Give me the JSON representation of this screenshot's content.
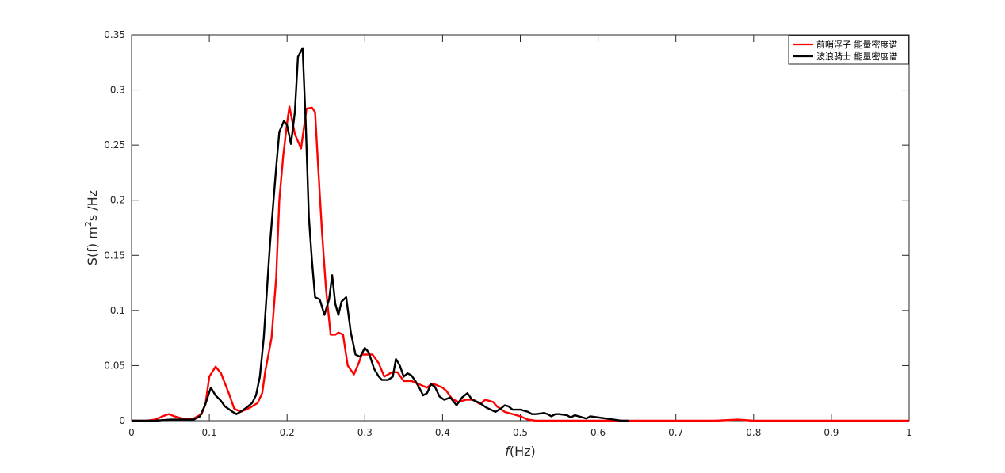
{
  "chart_data": {
    "type": "line",
    "title": "",
    "xlabel": "f(Hz)",
    "xlabel_italic_part": "f",
    "xlabel_rest": "(Hz)",
    "ylabel": "S(f) m²s /Hz",
    "ylabel_parts": {
      "prefix": "S(f) m",
      "sup": "2",
      "suffix": "s /Hz"
    },
    "xlim": [
      0,
      1
    ],
    "ylim": [
      0,
      0.35
    ],
    "xticks": [
      0,
      0.1,
      0.2,
      0.3,
      0.4,
      0.5,
      0.6,
      0.7,
      0.8,
      0.9,
      1
    ],
    "xtick_labels": [
      "0",
      "0.1",
      "0.2",
      "0.3",
      "0.4",
      "0.5",
      "0.6",
      "0.7",
      "0.8",
      "0.9",
      "1"
    ],
    "yticks": [
      0,
      0.05,
      0.1,
      0.15,
      0.2,
      0.25,
      0.3,
      0.35
    ],
    "ytick_labels": [
      "0",
      "0.05",
      "0.1",
      "0.15",
      "0.2",
      "0.25",
      "0.3",
      "0.35"
    ],
    "grid": false,
    "legend_position": "top-right",
    "series": [
      {
        "name": "前哨浮子 能量密度谱",
        "color": "#ff0000",
        "points": [
          [
            0.0,
            0.0
          ],
          [
            0.02,
            0.0
          ],
          [
            0.03,
            0.001
          ],
          [
            0.04,
            0.004
          ],
          [
            0.048,
            0.006
          ],
          [
            0.055,
            0.004
          ],
          [
            0.065,
            0.002
          ],
          [
            0.08,
            0.002
          ],
          [
            0.09,
            0.006
          ],
          [
            0.095,
            0.015
          ],
          [
            0.1,
            0.04
          ],
          [
            0.108,
            0.049
          ],
          [
            0.115,
            0.043
          ],
          [
            0.125,
            0.025
          ],
          [
            0.132,
            0.011
          ],
          [
            0.14,
            0.008
          ],
          [
            0.15,
            0.011
          ],
          [
            0.155,
            0.013
          ],
          [
            0.162,
            0.016
          ],
          [
            0.168,
            0.025
          ],
          [
            0.172,
            0.045
          ],
          [
            0.18,
            0.075
          ],
          [
            0.186,
            0.13
          ],
          [
            0.19,
            0.2
          ],
          [
            0.195,
            0.24
          ],
          [
            0.2,
            0.27
          ],
          [
            0.203,
            0.285
          ],
          [
            0.21,
            0.26
          ],
          [
            0.218,
            0.247
          ],
          [
            0.225,
            0.283
          ],
          [
            0.232,
            0.284
          ],
          [
            0.236,
            0.28
          ],
          [
            0.24,
            0.23
          ],
          [
            0.245,
            0.17
          ],
          [
            0.25,
            0.12
          ],
          [
            0.256,
            0.078
          ],
          [
            0.262,
            0.078
          ],
          [
            0.266,
            0.08
          ],
          [
            0.272,
            0.078
          ],
          [
            0.278,
            0.05
          ],
          [
            0.286,
            0.042
          ],
          [
            0.292,
            0.052
          ],
          [
            0.296,
            0.06
          ],
          [
            0.305,
            0.06
          ],
          [
            0.31,
            0.06
          ],
          [
            0.318,
            0.052
          ],
          [
            0.325,
            0.04
          ],
          [
            0.33,
            0.042
          ],
          [
            0.335,
            0.044
          ],
          [
            0.342,
            0.044
          ],
          [
            0.35,
            0.036
          ],
          [
            0.36,
            0.036
          ],
          [
            0.37,
            0.033
          ],
          [
            0.38,
            0.03
          ],
          [
            0.385,
            0.033
          ],
          [
            0.39,
            0.033
          ],
          [
            0.4,
            0.03
          ],
          [
            0.405,
            0.027
          ],
          [
            0.412,
            0.02
          ],
          [
            0.42,
            0.017
          ],
          [
            0.43,
            0.019
          ],
          [
            0.44,
            0.019
          ],
          [
            0.448,
            0.015
          ],
          [
            0.455,
            0.019
          ],
          [
            0.465,
            0.017
          ],
          [
            0.47,
            0.013
          ],
          [
            0.48,
            0.008
          ],
          [
            0.49,
            0.006
          ],
          [
            0.5,
            0.004
          ],
          [
            0.51,
            0.001
          ],
          [
            0.52,
            0.0
          ],
          [
            0.6,
            0.0
          ],
          [
            0.7,
            0.0
          ],
          [
            0.75,
            0.0
          ],
          [
            0.78,
            0.001
          ],
          [
            0.8,
            0.0
          ],
          [
            0.9,
            0.0
          ],
          [
            1.0,
            0.0
          ]
        ]
      },
      {
        "name": "波浪骑士 能量密度谱",
        "color": "#000000",
        "points": [
          [
            0.0,
            0.0
          ],
          [
            0.03,
            0.0
          ],
          [
            0.05,
            0.001
          ],
          [
            0.07,
            0.001
          ],
          [
            0.08,
            0.001
          ],
          [
            0.088,
            0.004
          ],
          [
            0.095,
            0.015
          ],
          [
            0.1,
            0.026
          ],
          [
            0.102,
            0.03
          ],
          [
            0.108,
            0.023
          ],
          [
            0.115,
            0.018
          ],
          [
            0.12,
            0.013
          ],
          [
            0.13,
            0.008
          ],
          [
            0.135,
            0.006
          ],
          [
            0.142,
            0.009
          ],
          [
            0.148,
            0.012
          ],
          [
            0.155,
            0.016
          ],
          [
            0.16,
            0.023
          ],
          [
            0.165,
            0.04
          ],
          [
            0.17,
            0.075
          ],
          [
            0.178,
            0.16
          ],
          [
            0.186,
            0.23
          ],
          [
            0.19,
            0.262
          ],
          [
            0.196,
            0.272
          ],
          [
            0.2,
            0.268
          ],
          [
            0.205,
            0.251
          ],
          [
            0.21,
            0.28
          ],
          [
            0.214,
            0.33
          ],
          [
            0.22,
            0.338
          ],
          [
            0.224,
            0.27
          ],
          [
            0.228,
            0.185
          ],
          [
            0.232,
            0.145
          ],
          [
            0.236,
            0.112
          ],
          [
            0.242,
            0.11
          ],
          [
            0.248,
            0.096
          ],
          [
            0.254,
            0.11
          ],
          [
            0.258,
            0.132
          ],
          [
            0.262,
            0.106
          ],
          [
            0.266,
            0.096
          ],
          [
            0.27,
            0.108
          ],
          [
            0.276,
            0.112
          ],
          [
            0.282,
            0.08
          ],
          [
            0.288,
            0.06
          ],
          [
            0.294,
            0.058
          ],
          [
            0.3,
            0.066
          ],
          [
            0.305,
            0.062
          ],
          [
            0.312,
            0.047
          ],
          [
            0.318,
            0.04
          ],
          [
            0.322,
            0.037
          ],
          [
            0.33,
            0.037
          ],
          [
            0.336,
            0.04
          ],
          [
            0.34,
            0.056
          ],
          [
            0.345,
            0.05
          ],
          [
            0.35,
            0.04
          ],
          [
            0.355,
            0.043
          ],
          [
            0.36,
            0.041
          ],
          [
            0.365,
            0.036
          ],
          [
            0.37,
            0.03
          ],
          [
            0.375,
            0.023
          ],
          [
            0.38,
            0.025
          ],
          [
            0.385,
            0.033
          ],
          [
            0.39,
            0.031
          ],
          [
            0.396,
            0.022
          ],
          [
            0.402,
            0.019
          ],
          [
            0.41,
            0.021
          ],
          [
            0.418,
            0.014
          ],
          [
            0.425,
            0.021
          ],
          [
            0.432,
            0.025
          ],
          [
            0.438,
            0.019
          ],
          [
            0.445,
            0.017
          ],
          [
            0.45,
            0.015
          ],
          [
            0.456,
            0.012
          ],
          [
            0.462,
            0.01
          ],
          [
            0.468,
            0.008
          ],
          [
            0.475,
            0.011
          ],
          [
            0.48,
            0.014
          ],
          [
            0.485,
            0.013
          ],
          [
            0.49,
            0.01
          ],
          [
            0.5,
            0.01
          ],
          [
            0.51,
            0.008
          ],
          [
            0.515,
            0.006
          ],
          [
            0.52,
            0.006
          ],
          [
            0.53,
            0.007
          ],
          [
            0.535,
            0.006
          ],
          [
            0.54,
            0.004
          ],
          [
            0.545,
            0.006
          ],
          [
            0.55,
            0.006
          ],
          [
            0.56,
            0.005
          ],
          [
            0.565,
            0.003
          ],
          [
            0.57,
            0.005
          ],
          [
            0.58,
            0.003
          ],
          [
            0.585,
            0.002
          ],
          [
            0.59,
            0.004
          ],
          [
            0.6,
            0.003
          ],
          [
            0.61,
            0.002
          ],
          [
            0.62,
            0.001
          ],
          [
            0.63,
            0.0
          ],
          [
            0.64,
            0.0
          ]
        ]
      }
    ]
  }
}
